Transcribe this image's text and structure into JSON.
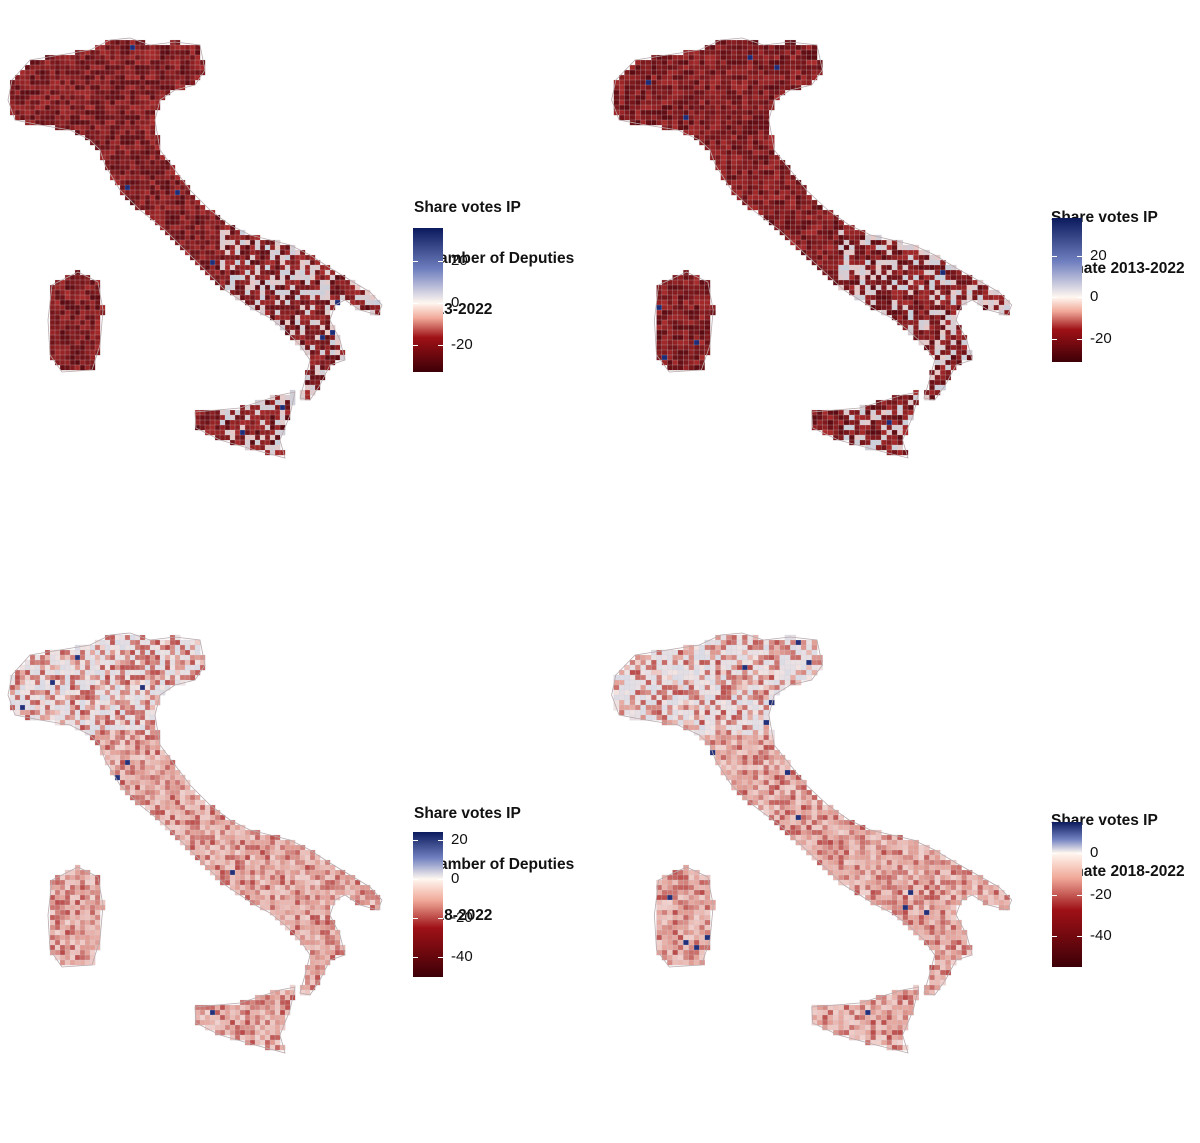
{
  "maps": [
    {
      "legend": {
        "title_line1": "Share votes IP",
        "title_line2": " Chamber of Deputies",
        "title_line3": " 2013-2022"
      },
      "scale": {
        "min": -33,
        "max": 36,
        "ticks": [
          20,
          0,
          -20
        ]
      },
      "tone": "dark-red",
      "colors": {
        "low": "#3d0007",
        "mid_low": "#9e1116",
        "zero": "#fff7f0",
        "mid_high": "#6f7fbf",
        "high": "#0a1a5c"
      }
    },
    {
      "legend": {
        "title_line1": "Share votes IP",
        "title_line2": " Senate 2013-2022",
        "title_line3": ""
      },
      "scale": {
        "min": -31,
        "max": 38,
        "ticks": [
          20,
          0,
          -20
        ]
      },
      "tone": "dark-red",
      "colors": {
        "low": "#3d0007",
        "mid_low": "#9e1116",
        "zero": "#fff7f0",
        "mid_high": "#6f7fbf",
        "high": "#0a1a5c"
      }
    },
    {
      "legend": {
        "title_line1": "Share votes IP",
        "title_line2": " Chamber of Deputies",
        "title_line3": " 2018-2022"
      },
      "scale": {
        "min": -50,
        "max": 24,
        "ticks": [
          20,
          0,
          -20,
          -40
        ]
      },
      "tone": "light-mixed",
      "colors": {
        "low": "#3d0007",
        "mid_low": "#9e1116",
        "zero": "#fff7f0",
        "mid_high": "#6f7fbf",
        "high": "#0a1a5c"
      }
    },
    {
      "legend": {
        "title_line1": "Share votes IP",
        "title_line2": " Senate 2018-2022",
        "title_line3": ""
      },
      "scale": {
        "min": -55,
        "max": 15,
        "ticks": [
          0,
          -20,
          -40
        ]
      },
      "tone": "light-mixed",
      "colors": {
        "low": "#3d0007",
        "mid_low": "#9e1116",
        "zero": "#fff7f0",
        "mid_high": "#6f7fbf",
        "high": "#0a1a5c"
      }
    }
  ]
}
